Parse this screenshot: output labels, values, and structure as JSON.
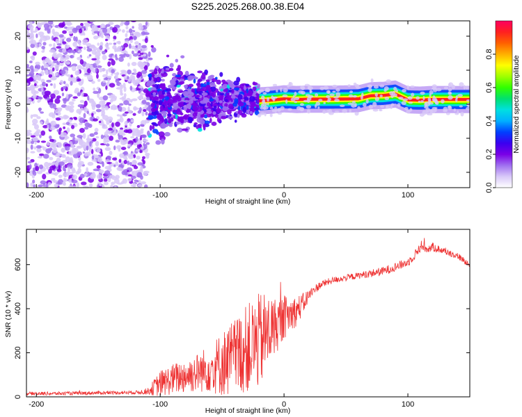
{
  "title": "S225.2025.268.00.38.E04",
  "colors": {
    "snr_line": "#ee3333",
    "spectrogram_dot": "#8a2be2",
    "colormap": [
      "#ffffff",
      "#d8c8f8",
      "#a070f0",
      "#7a00e6",
      "#3a00f0",
      "#0040ff",
      "#00b0ff",
      "#00e0e0",
      "#00e070",
      "#30ff00",
      "#a0ff00",
      "#ffff00",
      "#ffb000",
      "#ff6000",
      "#ff2020",
      "#ff0060"
    ]
  },
  "chart_data": [
    {
      "type": "heatmap",
      "name": "spectrogram",
      "xlabel": "Height of straight line (km)",
      "ylabel": "Frequency (Hz)",
      "xlim": [
        -208,
        150
      ],
      "ylim": [
        -24.5,
        24.5
      ],
      "xticks": [
        -200,
        -100,
        0,
        100
      ],
      "xtick_labels": [
        "-200",
        "-100",
        "0",
        "100"
      ],
      "yticks": [
        -20,
        -10,
        0,
        10,
        20
      ],
      "ytick_labels": [
        "-20",
        "-10",
        "0",
        "10",
        "20"
      ],
      "colorbar": {
        "label": "Normalized spectral amplitude",
        "range": [
          0.0,
          1.0
        ],
        "ticks": [
          0.0,
          0.2,
          0.4,
          0.6,
          0.8
        ],
        "tick_labels": [
          "0.0",
          "0.2",
          "0.4",
          "0.6",
          "0.8"
        ]
      },
      "regions": [
        {
          "description": "noise",
          "x_range": [
            -208,
            -110
          ],
          "freq_range": [
            -24.5,
            24.5
          ],
          "amplitude": 0.05
        },
        {
          "description": "emerging signal",
          "x_range": [
            -110,
            -20
          ],
          "freq_range": [
            -12,
            7
          ],
          "amplitude": 0.25
        },
        {
          "description": "strong carrier",
          "x_range": [
            -20,
            150
          ],
          "freq_range": [
            0,
            3
          ],
          "amplitude": 1.0
        }
      ],
      "carrier_track": {
        "x": [
          -20,
          -10,
          0,
          10,
          20,
          40,
          60,
          70,
          80,
          90,
          100,
          110,
          120,
          130,
          150
        ],
        "freq": [
          1.0,
          1.2,
          1.6,
          1.4,
          1.5,
          1.5,
          1.6,
          2.5,
          2.6,
          3.0,
          1.3,
          1.2,
          1.4,
          1.4,
          1.4
        ]
      }
    },
    {
      "type": "line",
      "name": "snr",
      "xlabel": "Height of straight line (km)",
      "ylabel": "SNR (10 * v/v)",
      "xlim": [
        -208,
        150
      ],
      "ylim": [
        0,
        760
      ],
      "xticks": [
        -200,
        -100,
        0,
        100
      ],
      "xtick_labels": [
        "-200",
        "-100",
        "0",
        "100"
      ],
      "yticks": [
        0,
        200,
        400,
        600
      ],
      "ytick_labels": [
        "0",
        "200",
        "400",
        "600"
      ],
      "series": [
        {
          "name": "SNR",
          "x": [
            -208,
            -180,
            -150,
            -120,
            -110,
            -100,
            -90,
            -80,
            -70,
            -60,
            -50,
            -40,
            -30,
            -20,
            -15,
            -10,
            -5,
            0,
            5,
            10,
            15,
            20,
            25,
            30,
            40,
            50,
            60,
            70,
            80,
            90,
            100,
            105,
            110,
            112,
            115,
            120,
            130,
            140,
            150
          ],
          "values": [
            15,
            15,
            18,
            20,
            25,
            60,
            80,
            95,
            110,
            130,
            150,
            180,
            220,
            250,
            280,
            310,
            330,
            360,
            375,
            390,
            420,
            460,
            490,
            510,
            530,
            540,
            550,
            560,
            570,
            590,
            610,
            640,
            680,
            690,
            670,
            680,
            660,
            640,
            600
          ],
          "noise_amplitude": [
            8,
            8,
            8,
            8,
            15,
            60,
            70,
            80,
            90,
            110,
            150,
            180,
            200,
            220,
            200,
            150,
            120,
            100,
            80,
            70,
            50,
            30,
            20,
            18,
            15,
            15,
            15,
            18,
            20,
            20,
            20,
            20,
            25,
            25,
            20,
            20,
            15,
            15,
            15
          ]
        }
      ]
    }
  ]
}
